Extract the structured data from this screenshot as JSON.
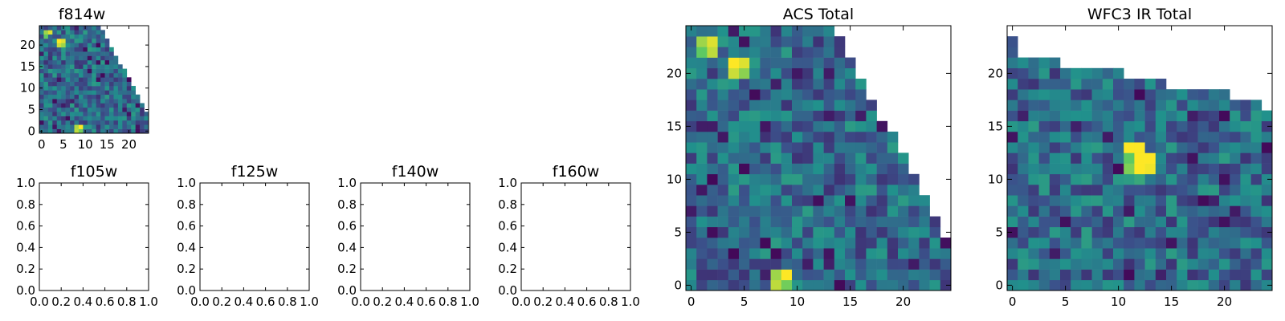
{
  "chart_data": [
    {
      "id": "f814w",
      "type": "heatmap",
      "title": "f814w",
      "colormap": "viridis",
      "extent": [
        -0.5,
        24.5,
        -0.5,
        24.5
      ],
      "origin": "lower",
      "xticks": [
        0,
        5,
        10,
        15,
        20
      ],
      "yticks": [
        0,
        5,
        10,
        15,
        20
      ],
      "hot_pixels": [
        [
          1,
          23,
          0.85
        ],
        [
          2,
          23,
          0.95
        ],
        [
          1,
          22,
          0.75
        ],
        [
          4,
          21,
          1.0
        ],
        [
          5,
          21,
          0.95
        ],
        [
          4,
          20,
          0.92
        ],
        [
          5,
          20,
          0.85
        ],
        [
          8,
          1,
          0.88
        ],
        [
          9,
          1,
          1.0
        ],
        [
          8,
          0,
          0.9
        ],
        [
          9,
          0,
          0.78
        ]
      ],
      "blank_region": "upper-right triangle (no coverage)"
    },
    {
      "id": "f105w",
      "type": "heatmap",
      "title": "f105w",
      "empty": true,
      "xlim": [
        0,
        1
      ],
      "ylim": [
        0,
        1
      ],
      "xticks": [
        "0.0",
        "0.2",
        "0.4",
        "0.6",
        "0.8",
        "1.0"
      ],
      "yticks": [
        "0.0",
        "0.2",
        "0.4",
        "0.6",
        "0.8",
        "1.0"
      ]
    },
    {
      "id": "f125w",
      "type": "heatmap",
      "title": "f125w",
      "empty": true,
      "xlim": [
        0,
        1
      ],
      "ylim": [
        0,
        1
      ],
      "xticks": [
        "0.0",
        "0.2",
        "0.4",
        "0.6",
        "0.8",
        "1.0"
      ],
      "yticks": [
        "0.0",
        "0.2",
        "0.4",
        "0.6",
        "0.8",
        "1.0"
      ]
    },
    {
      "id": "f140w",
      "type": "heatmap",
      "title": "f140w",
      "empty": true,
      "xlim": [
        0,
        1
      ],
      "ylim": [
        0,
        1
      ],
      "xticks": [
        "0.0",
        "0.2",
        "0.4",
        "0.6",
        "0.8",
        "1.0"
      ],
      "yticks": [
        "0.0",
        "0.2",
        "0.4",
        "0.6",
        "0.8",
        "1.0"
      ]
    },
    {
      "id": "f160w",
      "type": "heatmap",
      "title": "f160w",
      "empty": true,
      "xlim": [
        0,
        1
      ],
      "ylim": [
        0,
        1
      ],
      "xticks": [
        "0.0",
        "0.2",
        "0.4",
        "0.6",
        "0.8",
        "1.0"
      ],
      "yticks": [
        "0.0",
        "0.2",
        "0.4",
        "0.6",
        "0.8",
        "1.0"
      ]
    },
    {
      "id": "acs-total",
      "type": "heatmap",
      "title": "ACS Total",
      "colormap": "viridis",
      "extent": [
        -0.5,
        24.5,
        -0.5,
        24.5
      ],
      "origin": "lower",
      "xticks": [
        0,
        5,
        10,
        15,
        20
      ],
      "yticks": [
        0,
        5,
        10,
        15,
        20
      ],
      "hot_pixels": [
        [
          1,
          23,
          0.85
        ],
        [
          2,
          23,
          0.95
        ],
        [
          1,
          22,
          0.75
        ],
        [
          2,
          22,
          0.9
        ],
        [
          4,
          21,
          1.0
        ],
        [
          5,
          21,
          0.95
        ],
        [
          4,
          20,
          0.92
        ],
        [
          5,
          20,
          0.82
        ],
        [
          8,
          1,
          0.85
        ],
        [
          9,
          1,
          1.0
        ],
        [
          8,
          0,
          0.9
        ],
        [
          9,
          0,
          0.78
        ]
      ],
      "blank_region": "upper-right triangle (no coverage)"
    },
    {
      "id": "wfc3-ir-total",
      "type": "heatmap",
      "title": "WFC3 IR Total",
      "colormap": "viridis",
      "extent": [
        -0.5,
        24.5,
        -0.5,
        24.5
      ],
      "origin": "lower",
      "xticks": [
        0,
        5,
        10,
        15,
        20
      ],
      "yticks": [
        0,
        5,
        10,
        15,
        20
      ],
      "hot_pixels": [
        [
          11,
          13,
          1.0
        ],
        [
          12,
          13,
          1.0
        ],
        [
          11,
          12,
          0.75
        ],
        [
          12,
          12,
          1.0
        ],
        [
          13,
          12,
          1.0
        ],
        [
          11,
          11,
          0.8
        ],
        [
          12,
          11,
          1.0
        ],
        [
          13,
          11,
          0.98
        ],
        [
          12,
          10,
          0.6
        ]
      ],
      "blank_region": "top edge (no coverage)"
    }
  ]
}
